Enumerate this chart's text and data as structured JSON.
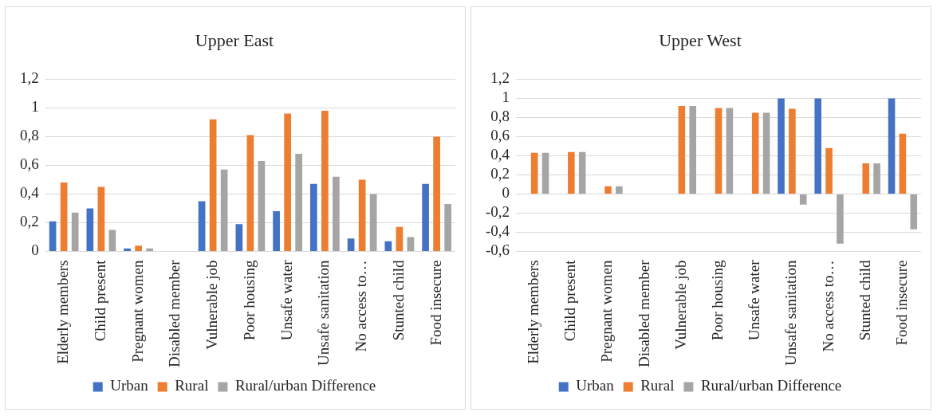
{
  "chart_data": [
    {
      "type": "bar",
      "title": "Upper East",
      "categories": [
        "Elderly members",
        "Child present",
        "Pregnant women",
        "Disabled member",
        "Vulnerable job",
        "Poor housing",
        "Unsafe water",
        "Unsafe sanitation",
        "No access to…",
        "Stunted child",
        "Food insecure"
      ],
      "series": [
        {
          "name": "Urban",
          "color": "#4472c4",
          "values": [
            0.21,
            0.3,
            0.02,
            0,
            0.35,
            0.19,
            0.28,
            0.47,
            0.09,
            0.07,
            0.47
          ]
        },
        {
          "name": "Rural",
          "color": "#ed7d31",
          "values": [
            0.48,
            0.45,
            0.04,
            0,
            0.92,
            0.81,
            0.96,
            0.98,
            0.5,
            0.17,
            0.8
          ]
        },
        {
          "name": "Rural/urban Difference",
          "color": "#a5a5a5",
          "values": [
            0.27,
            0.15,
            0.02,
            0,
            0.57,
            0.63,
            0.68,
            0.52,
            0.4,
            0.1,
            0.33
          ]
        }
      ],
      "ylim": [
        0,
        1.2
      ],
      "yticks": [
        {
          "value": 0,
          "label": "0"
        },
        {
          "value": 0.2,
          "label": "0,2"
        },
        {
          "value": 0.4,
          "label": "0,4"
        },
        {
          "value": 0.6,
          "label": "0,6"
        },
        {
          "value": 0.8,
          "label": "0,8"
        },
        {
          "value": 1,
          "label": "1"
        },
        {
          "value": 1.2,
          "label": "1,2"
        }
      ],
      "grid": "y",
      "legend": "bottom"
    },
    {
      "type": "bar",
      "title": "Upper West",
      "categories": [
        "Elderly members",
        "Child present",
        "Pregnant women",
        "Disabled member",
        "Vulnerable job",
        "Poor housing",
        "Unsafe water",
        "Unsafe sanitation",
        "No access to…",
        "Stunted child",
        "Food insecure"
      ],
      "series": [
        {
          "name": "Urban",
          "color": "#4472c4",
          "values": [
            0,
            0,
            0,
            0,
            0,
            0,
            0,
            1,
            1,
            0,
            1
          ]
        },
        {
          "name": "Rural",
          "color": "#ed7d31",
          "values": [
            0.43,
            0.44,
            0.08,
            0,
            0.92,
            0.9,
            0.85,
            0.89,
            0.48,
            0.32,
            0.63
          ]
        },
        {
          "name": "Rural/urban Difference",
          "color": "#a5a5a5",
          "values": [
            0.43,
            0.44,
            0.08,
            0,
            0.92,
            0.9,
            0.85,
            -0.11,
            -0.52,
            0.32,
            -0.37
          ]
        }
      ],
      "ylim": [
        -0.6,
        1.2
      ],
      "yticks": [
        {
          "value": -0.6,
          "label": "-0,6"
        },
        {
          "value": -0.4,
          "label": "-0,4"
        },
        {
          "value": -0.2,
          "label": "-0,2"
        },
        {
          "value": 0,
          "label": "0"
        },
        {
          "value": 0.2,
          "label": "0,2"
        },
        {
          "value": 0.4,
          "label": "0,4"
        },
        {
          "value": 0.6,
          "label": "0,6"
        },
        {
          "value": 0.8,
          "label": "0,8"
        },
        {
          "value": 1,
          "label": "1"
        },
        {
          "value": 1.2,
          "label": "1,2"
        }
      ],
      "grid": "y",
      "legend": "bottom"
    }
  ]
}
